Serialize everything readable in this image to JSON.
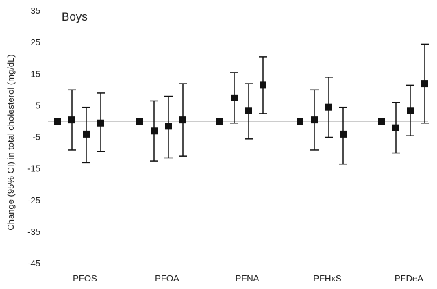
{
  "chart_data": {
    "type": "scatter",
    "panel_label": "Boys",
    "ylabel": "Change (95% CI) in total cholesterol (mg/dL)",
    "xlabel": "",
    "ylim": [
      -45,
      35
    ],
    "yticks": [
      35,
      25,
      15,
      5,
      -5,
      -15,
      -25,
      -35,
      -45
    ],
    "grid": false,
    "reference_line": 0,
    "categories": [
      "PFOS",
      "PFOA",
      "PFNA",
      "PFHxS",
      "PFDeA"
    ],
    "points_per_category": 4,
    "groups": [
      {
        "category": "PFOS",
        "points": [
          {
            "value": 0,
            "lower": null,
            "upper": null
          },
          {
            "value": 0.5,
            "lower": -9,
            "upper": 10
          },
          {
            "value": -4,
            "lower": -13,
            "upper": 4.5
          },
          {
            "value": -0.5,
            "lower": -9.5,
            "upper": 9
          }
        ]
      },
      {
        "category": "PFOA",
        "points": [
          {
            "value": 0,
            "lower": null,
            "upper": null
          },
          {
            "value": -3,
            "lower": -12.5,
            "upper": 6.5
          },
          {
            "value": -1.5,
            "lower": -11.5,
            "upper": 8
          },
          {
            "value": 0.5,
            "lower": -11,
            "upper": 12
          }
        ]
      },
      {
        "category": "PFNA",
        "points": [
          {
            "value": 0,
            "lower": null,
            "upper": null
          },
          {
            "value": 7.5,
            "lower": -0.5,
            "upper": 15.5
          },
          {
            "value": 3.5,
            "lower": -5.5,
            "upper": 12
          },
          {
            "value": 11.5,
            "lower": 2.5,
            "upper": 20.5
          }
        ]
      },
      {
        "category": "PFHxS",
        "points": [
          {
            "value": 0,
            "lower": null,
            "upper": null
          },
          {
            "value": 0.5,
            "lower": -9,
            "upper": 10
          },
          {
            "value": 4.5,
            "lower": -5,
            "upper": 14
          },
          {
            "value": -4,
            "lower": -13.5,
            "upper": 4.5
          }
        ]
      },
      {
        "category": "PFDeA",
        "points": [
          {
            "value": 0,
            "lower": null,
            "upper": null
          },
          {
            "value": -2,
            "lower": -10,
            "upper": 6
          },
          {
            "value": 3.5,
            "lower": -4.5,
            "upper": 11.5
          },
          {
            "value": 12,
            "lower": -0.5,
            "upper": 24.5
          }
        ]
      }
    ],
    "colors": {
      "marker": "#111111",
      "errorbar": "#111111",
      "zero_line": "#cccccc",
      "text": "#222222"
    }
  }
}
